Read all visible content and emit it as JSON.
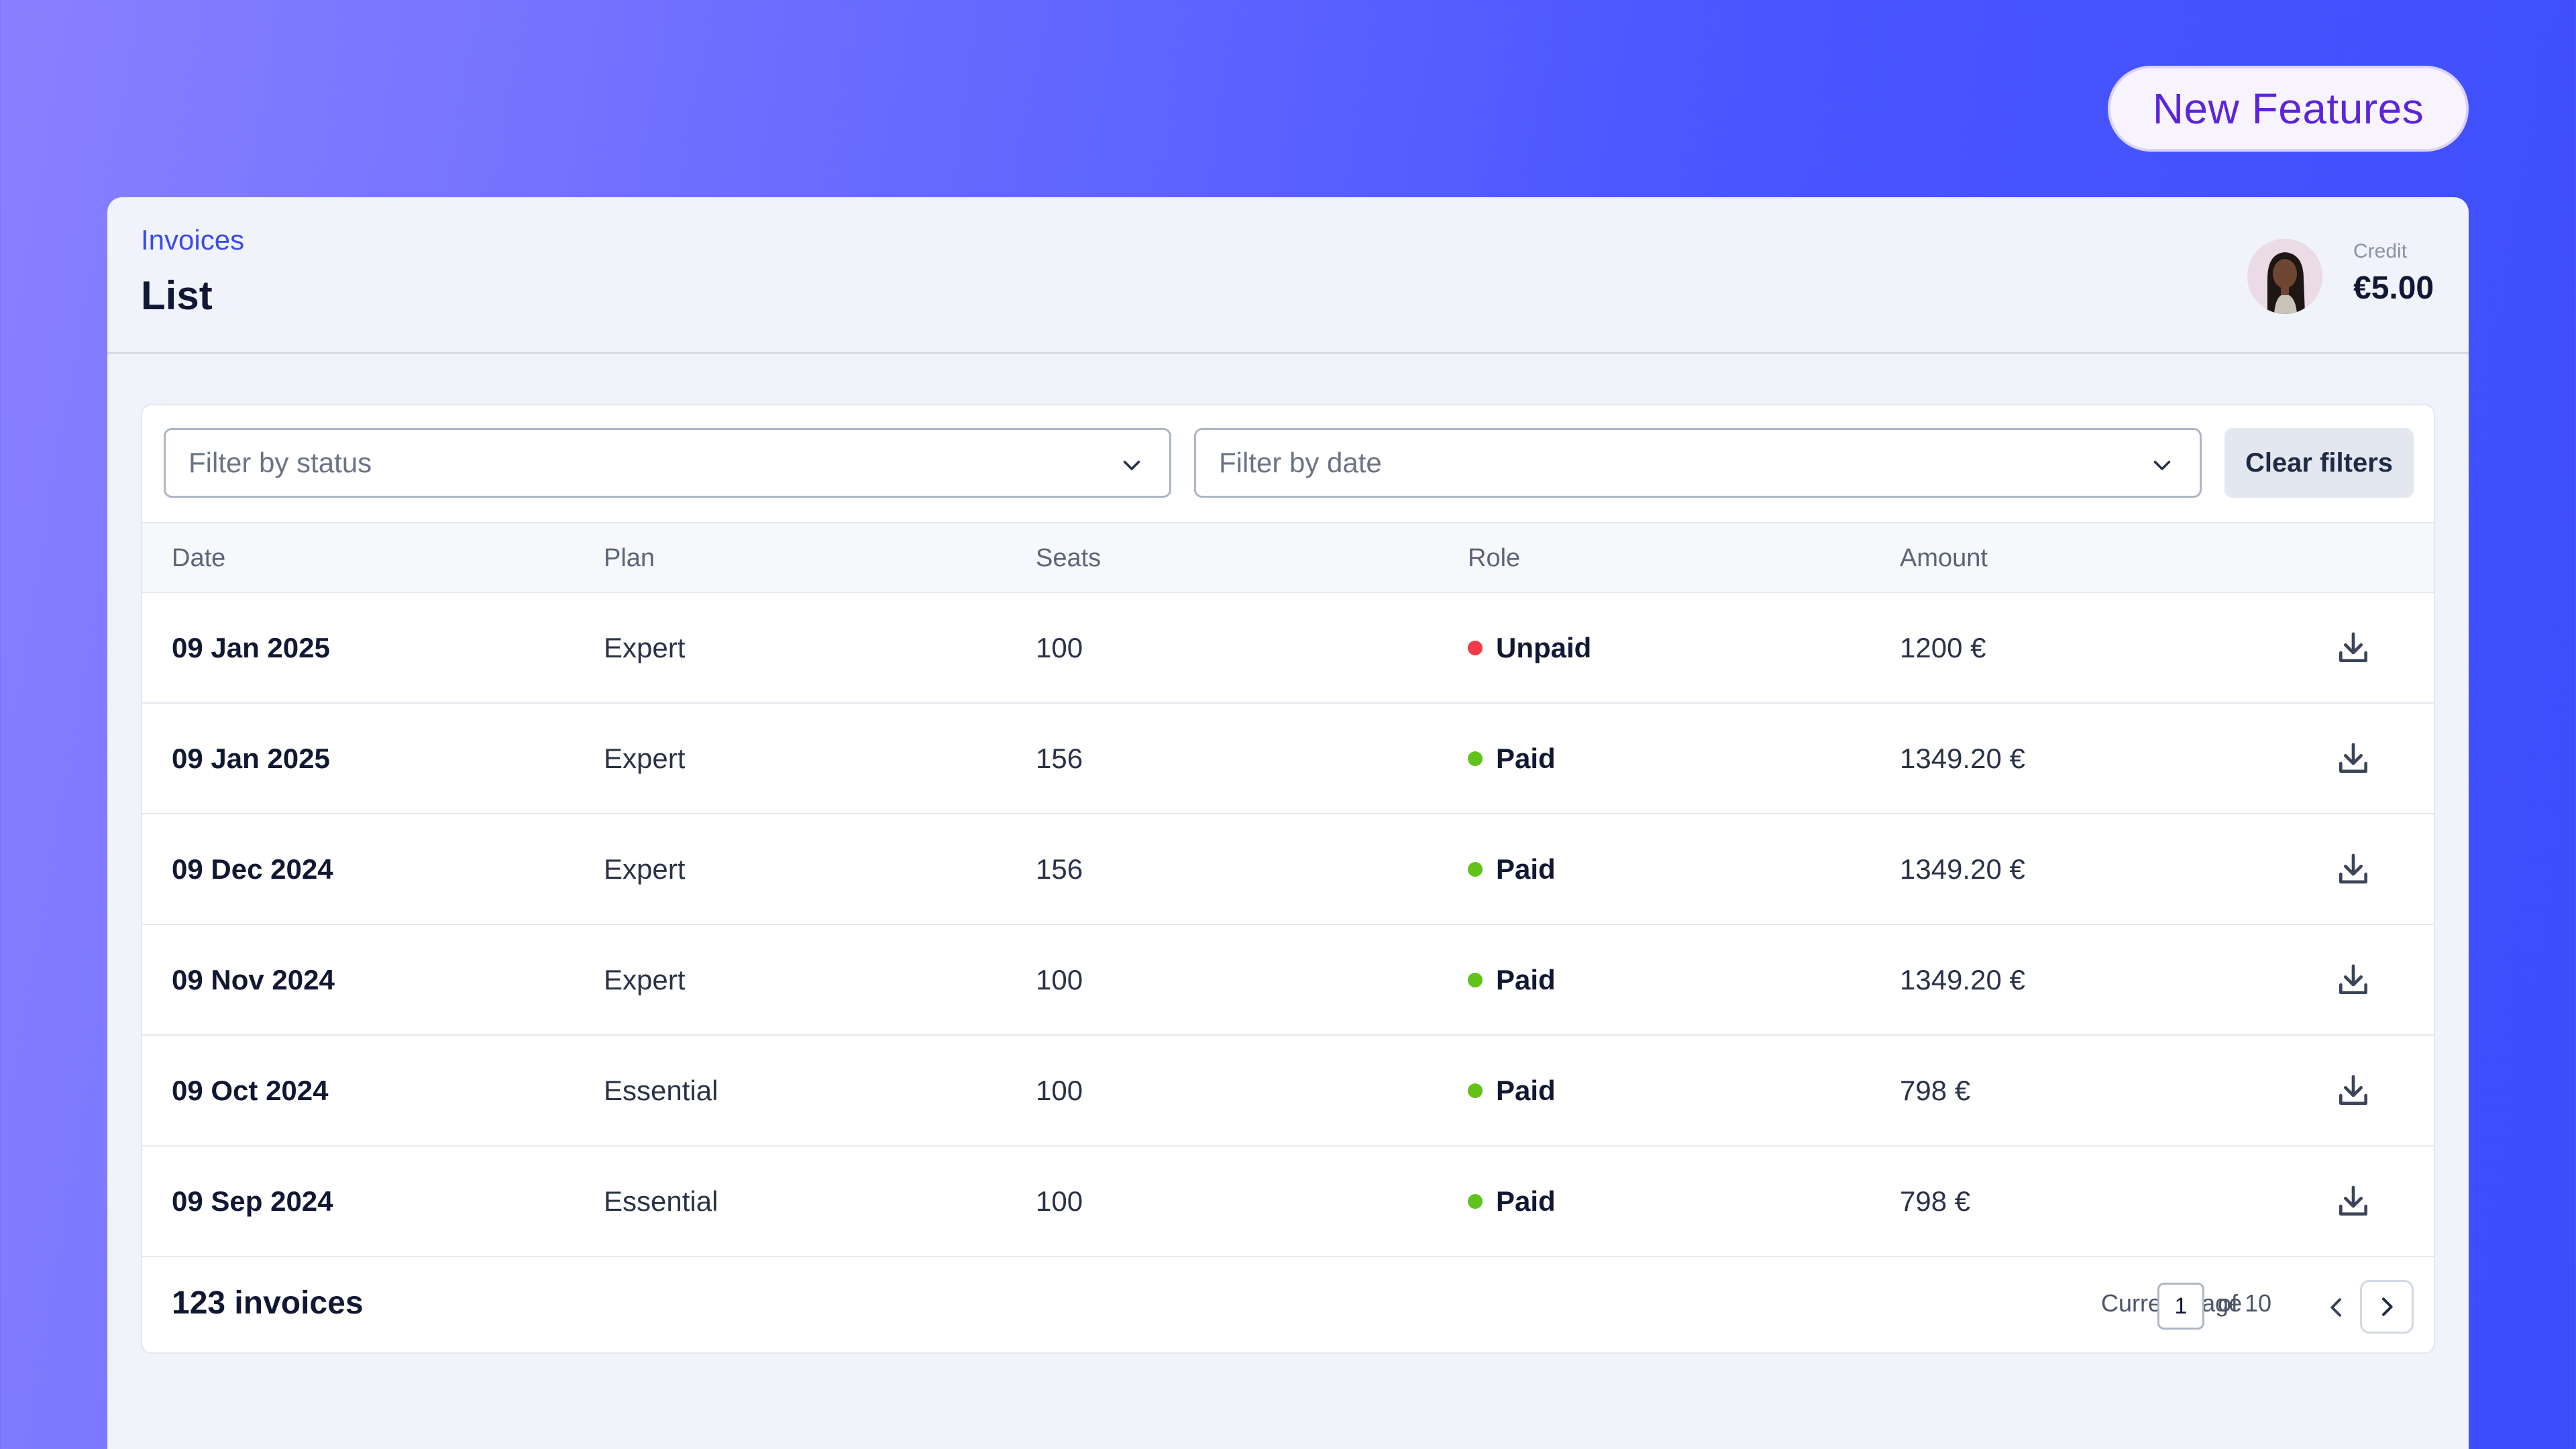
{
  "badge": {
    "label": "New Features"
  },
  "header": {
    "breadcrumb": "Invoices",
    "title": "List",
    "credit_label": "Credit",
    "credit_value": "€5.00"
  },
  "filters": {
    "status_placeholder": "Filter by status",
    "date_placeholder": "Filter by date",
    "clear_label": "Clear filters"
  },
  "table": {
    "columns": [
      "Date",
      "Plan",
      "Seats",
      "Role",
      "Amount"
    ],
    "rows": [
      {
        "date": "09 Jan 2025",
        "plan": "Expert",
        "seats": "100",
        "role": "Unpaid",
        "amount": "1200 €"
      },
      {
        "date": "09 Jan 2025",
        "plan": "Expert",
        "seats": "156",
        "role": "Paid",
        "amount": "1349.20 €"
      },
      {
        "date": "09 Dec 2024",
        "plan": "Expert",
        "seats": "156",
        "role": "Paid",
        "amount": "1349.20 €"
      },
      {
        "date": "09 Nov 2024",
        "plan": "Expert",
        "seats": "100",
        "role": "Paid",
        "amount": "1349.20 €"
      },
      {
        "date": "09 Oct 2024",
        "plan": "Essential",
        "seats": "100",
        "role": "Paid",
        "amount": "798 €"
      },
      {
        "date": "09 Sep 2024",
        "plan": "Essential",
        "seats": "100",
        "role": "Paid",
        "amount": "798 €"
      }
    ]
  },
  "status_colors": {
    "Unpaid": "#ef3b4a",
    "Paid": "#62c21a"
  },
  "footer": {
    "count": "123 invoices",
    "current_page_label": "Current page",
    "current_page": "1",
    "of_label": "of 10"
  },
  "icons": {
    "row_action": "download-icon",
    "select": "chevron-down-icon",
    "prev": "chevron-left-icon",
    "next": "chevron-right-icon"
  }
}
